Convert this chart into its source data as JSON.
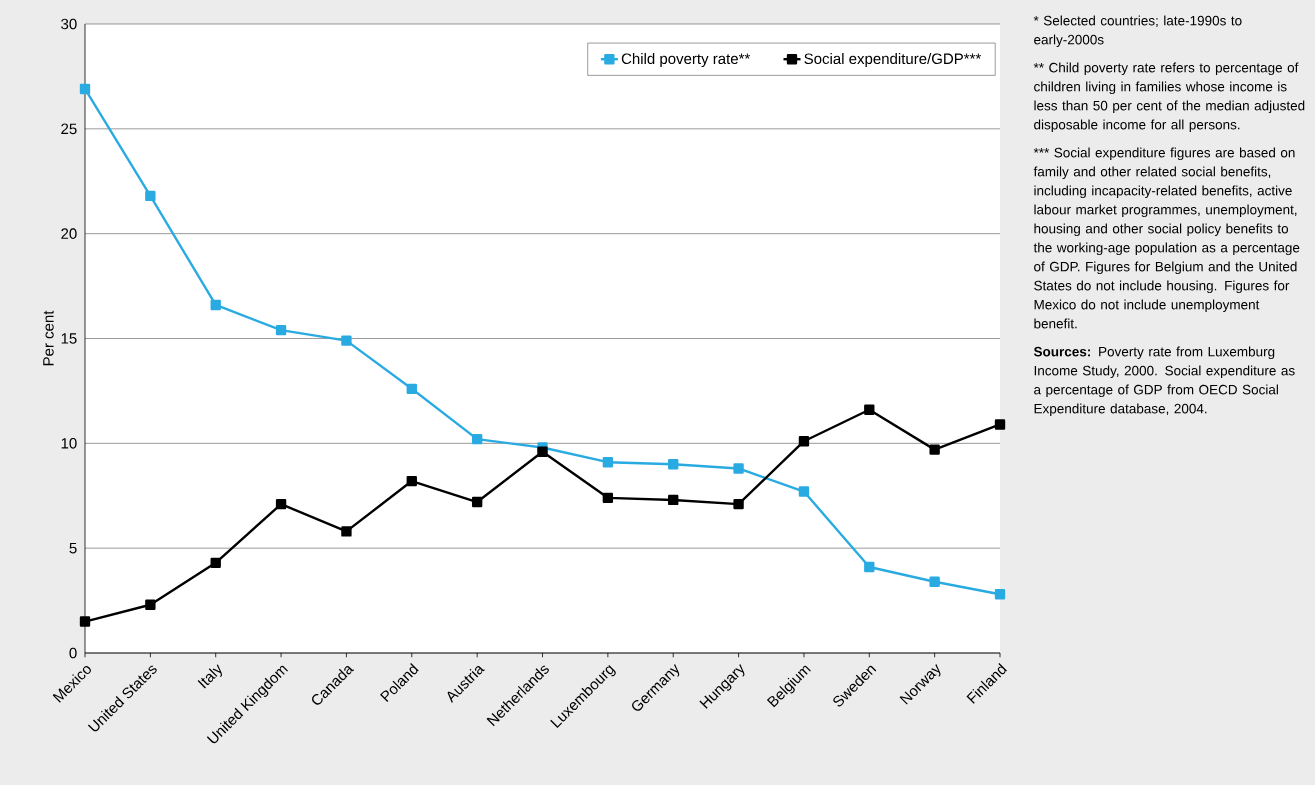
{
  "chart_data": {
    "type": "line",
    "ylabel": "Per cent",
    "categories": [
      "Mexico",
      "United States",
      "Italy",
      "United Kingdom",
      "Canada",
      "Poland",
      "Austria",
      "Netherlands",
      "Luxembourg",
      "Germany",
      "Hungary",
      "Belgium",
      "Sweden",
      "Norway",
      "Finland"
    ],
    "series": [
      {
        "name": "Child poverty rate**",
        "color": "#29abe2",
        "values": [
          26.9,
          21.8,
          16.6,
          15.4,
          14.9,
          12.6,
          10.2,
          9.8,
          9.1,
          9.0,
          8.8,
          7.7,
          4.1,
          3.4,
          2.8
        ]
      },
      {
        "name": "Social expenditure/GDP***",
        "color": "#000000",
        "values": [
          1.5,
          2.3,
          4.3,
          7.1,
          5.8,
          8.2,
          7.2,
          9.6,
          7.4,
          7.3,
          7.1,
          10.1,
          11.6,
          9.7,
          10.9
        ]
      }
    ],
    "ylim": [
      0,
      30
    ],
    "yticks": [
      0,
      5,
      10,
      15,
      20,
      25,
      30
    ],
    "grid": "y",
    "legend": "top right",
    "marker": "square",
    "line_style": "solid",
    "annotations": [
      "* Selected countries; late-1990s to early-2000s",
      "** Child poverty rate refers to percentage of children living in families whose income is less than 50 per cent of the median adjusted disposable income for all persons.",
      "*** Social expenditure figures are based on family and other related social benefits, including incapacity-related benefits, active labour market programmes, unemployment, housing and other social policy benefits to the working-age population as a percentage of GDP.  Figures for Belgium and the United States do not include housing. Figures for Mexico do not include unemployment benefit.",
      "**Sources:** Poverty rate from Luxemburg Income Study, 2000. Social expenditure as a percentage of GDP from OECD Social Expenditure database, 2004."
    ]
  }
}
